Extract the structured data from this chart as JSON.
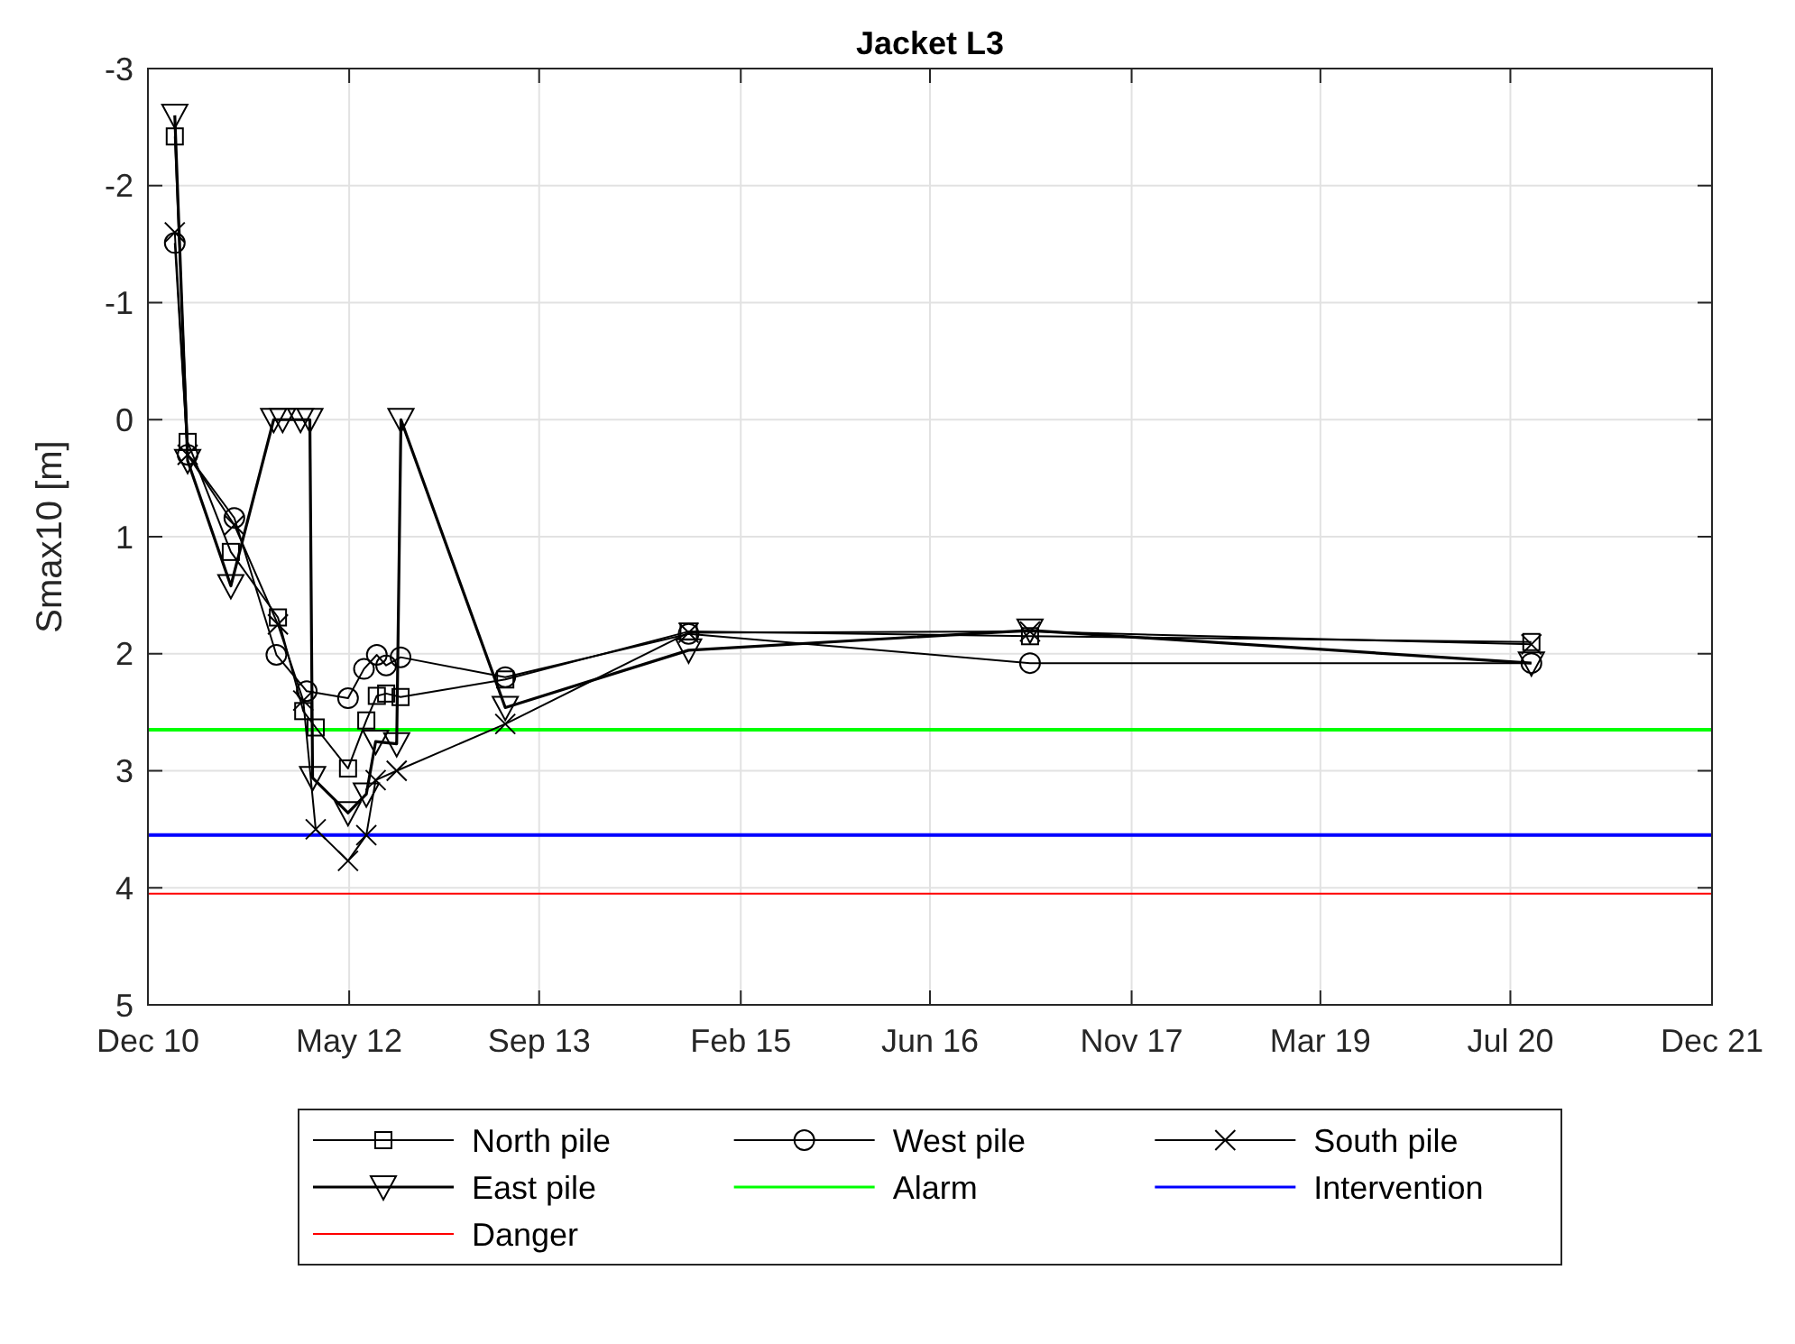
{
  "chart_data": {
    "type": "line",
    "title": "Jacket L3",
    "ylabel": "Smax10 [m]",
    "xlim": [
      "2010-12-01",
      "2021-12-01"
    ],
    "xticks": [
      {
        "value": "2010-12-01",
        "label": "Dec 10"
      },
      {
        "value": "2012-05-01",
        "label": "May 12"
      },
      {
        "value": "2013-09-01",
        "label": "Sep 13"
      },
      {
        "value": "2015-02-01",
        "label": "Feb 15"
      },
      {
        "value": "2016-06-01",
        "label": "Jun 16"
      },
      {
        "value": "2017-11-01",
        "label": "Nov 17"
      },
      {
        "value": "2019-03-01",
        "label": "Mar 19"
      },
      {
        "value": "2020-07-01",
        "label": "Jul 20"
      },
      {
        "value": "2021-12-01",
        "label": "Dec 21"
      }
    ],
    "ylim": [
      5,
      -3
    ],
    "yticks": [
      -3,
      -2,
      -1,
      0,
      1,
      2,
      3,
      4,
      5
    ],
    "grid": true,
    "legend": "bottom",
    "series": [
      {
        "name": "North pile",
        "color": "#000000",
        "marker": "square",
        "x": [
          "2011-02-08",
          "2011-03-13",
          "2011-07-02",
          "2011-10-31",
          "2012-01-04",
          "2012-02-05",
          "2012-04-28",
          "2012-06-14",
          "2012-07-11",
          "2012-08-04",
          "2012-09-10",
          "2013-06-06",
          "2014-09-20",
          "2017-02-13",
          "2020-08-24"
        ],
        "values": [
          -2.42,
          0.19,
          1.13,
          1.69,
          2.49,
          2.63,
          2.98,
          2.57,
          2.36,
          2.34,
          2.37,
          2.22,
          1.81,
          1.85,
          1.9
        ]
      },
      {
        "name": "West pile",
        "color": "#000000",
        "marker": "circle",
        "x": [
          "2011-02-08",
          "2011-03-13",
          "2011-07-11",
          "2011-10-27",
          "2012-01-13",
          "2012-04-28",
          "2012-06-08",
          "2012-07-11",
          "2012-08-04",
          "2012-09-10",
          "2013-06-06",
          "2014-09-20",
          "2017-02-13",
          "2020-08-24"
        ],
        "values": [
          -1.51,
          0.3,
          0.84,
          2.01,
          2.32,
          2.38,
          2.13,
          2.01,
          2.1,
          2.03,
          2.2,
          1.83,
          2.08,
          2.08
        ]
      },
      {
        "name": "South pile",
        "color": "#000000",
        "marker": "cross",
        "x": [
          "2011-02-08",
          "2011-03-13",
          "2011-07-11",
          "2011-10-31",
          "2012-01-04",
          "2012-02-05",
          "2012-04-28",
          "2012-06-14",
          "2012-07-08",
          "2012-08-31",
          "2013-06-06",
          "2014-09-20",
          "2017-02-13",
          "2020-08-24"
        ],
        "values": [
          -1.6,
          0.3,
          0.9,
          1.75,
          2.4,
          3.5,
          3.77,
          3.55,
          3.08,
          3.0,
          2.6,
          1.82,
          1.81,
          1.92
        ]
      },
      {
        "name": "East pile",
        "color": "#000000",
        "marker": "triangle",
        "x": [
          "2011-02-08",
          "2011-03-13",
          "2011-07-02",
          "2011-10-20",
          "2011-11-12",
          "2011-12-28",
          "2012-01-21",
          "2012-01-28",
          "2012-04-28",
          "2012-06-14",
          "2012-07-08",
          "2012-08-31",
          "2012-09-11",
          "2013-06-06",
          "2014-09-20",
          "2017-02-13",
          "2020-08-24"
        ],
        "values": [
          -2.6,
          0.35,
          1.42,
          0,
          0,
          0,
          0,
          3.06,
          3.36,
          3.2,
          2.75,
          2.77,
          0,
          2.46,
          1.97,
          1.8,
          2.08
        ]
      }
    ],
    "ref_lines": [
      {
        "axis": "y",
        "value": 2.65,
        "label": "Alarm",
        "color": "#00ff00"
      },
      {
        "axis": "y",
        "value": 3.55,
        "label": "Intervention",
        "color": "#0000ff"
      },
      {
        "axis": "y",
        "value": 4.05,
        "label": "Danger",
        "color": "#ff0000"
      }
    ]
  }
}
